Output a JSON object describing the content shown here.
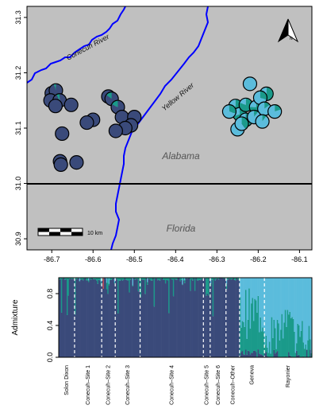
{
  "map": {
    "x_axis": {
      "min": -86.76,
      "max": -86.07,
      "ticks": [
        -86.7,
        -86.6,
        -86.5,
        -86.4,
        -86.3,
        -86.2,
        -86.1
      ],
      "tick_labels": [
        "-86.7",
        "-86.6",
        "-86.5",
        "-86.4",
        "-86.3",
        "-86.2",
        "-86.1"
      ]
    },
    "y_axis": {
      "min": 30.88,
      "max": 31.32,
      "ticks": [
        30.9,
        31.0,
        31.1,
        31.2,
        31.3
      ],
      "tick_labels": [
        "30.9",
        "31.0",
        "31.1",
        "31.2",
        "31.3"
      ]
    },
    "state_boundary_lat": 31.0,
    "labels": {
      "north": "N",
      "conecuh_river": "Conecuh River",
      "yellow_river": "Yellow River",
      "alabama": "Alabama",
      "florida": "Florida",
      "scale_bar": "10 km"
    },
    "colors": {
      "background": "#c0c0c0",
      "river": "#0000ff",
      "cluster_navy": "#3a4a7a",
      "cluster_teal": "#1a9a8a",
      "cluster_light_blue": "#5bbcdc",
      "cluster_red": "#e05050"
    },
    "points": [
      {
        "lon": -86.7,
        "lat": 31.163,
        "q": [
          1.0,
          0.0,
          0.0
        ]
      },
      {
        "lon": -86.69,
        "lat": 31.168,
        "q": [
          0.95,
          0.05,
          0.0
        ]
      },
      {
        "lon": -86.703,
        "lat": 31.15,
        "q": [
          1.0,
          0.0,
          0.0
        ]
      },
      {
        "lon": -86.681,
        "lat": 31.15,
        "q": [
          0.92,
          0.08,
          0.0
        ]
      },
      {
        "lon": -86.691,
        "lat": 31.14,
        "q": [
          1.0,
          0.0,
          0.0
        ]
      },
      {
        "lon": -86.653,
        "lat": 31.142,
        "q": [
          1.0,
          0.0,
          0.0
        ]
      },
      {
        "lon": -86.6,
        "lat": 31.115,
        "q": [
          1.0,
          0.0,
          0.0
        ]
      },
      {
        "lon": -86.615,
        "lat": 31.11,
        "q": [
          1.0,
          0.0,
          0.0
        ]
      },
      {
        "lon": -86.675,
        "lat": 31.09,
        "q": [
          1.0,
          0.0,
          0.0
        ]
      },
      {
        "lon": -86.68,
        "lat": 31.04,
        "q": [
          1.0,
          0.0,
          0.0
        ]
      },
      {
        "lon": -86.678,
        "lat": 31.034,
        "q": [
          1.0,
          0.0,
          0.0
        ]
      },
      {
        "lon": -86.64,
        "lat": 31.038,
        "q": [
          1.0,
          0.0,
          0.0
        ]
      },
      {
        "lon": -86.563,
        "lat": 31.157,
        "q": [
          1.0,
          0.0,
          0.0
        ]
      },
      {
        "lon": -86.555,
        "lat": 31.153,
        "q": [
          0.85,
          0.15,
          0.0
        ]
      },
      {
        "lon": -86.54,
        "lat": 31.138,
        "q": [
          0.82,
          0.18,
          0.0
        ]
      },
      {
        "lon": -86.53,
        "lat": 31.12,
        "q": [
          1.0,
          0.0,
          0.0
        ]
      },
      {
        "lon": -86.5,
        "lat": 31.12,
        "q": [
          1.0,
          0.0,
          0.0
        ]
      },
      {
        "lon": -86.508,
        "lat": 31.105,
        "q": [
          1.0,
          0.0,
          0.0
        ]
      },
      {
        "lon": -86.522,
        "lat": 31.1,
        "q": [
          1.0,
          0.0,
          0.0
        ]
      },
      {
        "lon": -86.545,
        "lat": 31.095,
        "q": [
          1.0,
          0.0,
          0.0
        ]
      },
      {
        "lon": -86.22,
        "lat": 31.18,
        "q": [
          0.0,
          0.0,
          1.0
        ]
      },
      {
        "lon": -86.255,
        "lat": 31.14,
        "q": [
          0.0,
          0.6,
          0.4
        ]
      },
      {
        "lon": -86.245,
        "lat": 31.125,
        "q": [
          0.0,
          0.7,
          0.3
        ]
      },
      {
        "lon": -86.23,
        "lat": 31.142,
        "q": [
          0.0,
          0.8,
          0.2
        ]
      },
      {
        "lon": -86.205,
        "lat": 31.138,
        "q": [
          0.0,
          0.75,
          0.25
        ]
      },
      {
        "lon": -86.18,
        "lat": 31.162,
        "q": [
          0.0,
          0.85,
          0.15
        ]
      },
      {
        "lon": -86.195,
        "lat": 31.155,
        "q": [
          0.0,
          0.3,
          0.7
        ]
      },
      {
        "lon": -86.185,
        "lat": 31.135,
        "q": [
          0.0,
          0.15,
          0.85
        ]
      },
      {
        "lon": -86.16,
        "lat": 31.13,
        "q": [
          0.0,
          0.2,
          0.8
        ]
      },
      {
        "lon": -86.23,
        "lat": 31.115,
        "q": [
          0.0,
          0.5,
          0.5
        ]
      },
      {
        "lon": -86.21,
        "lat": 31.12,
        "q": [
          0.0,
          0.1,
          0.9
        ]
      },
      {
        "lon": -86.25,
        "lat": 31.098,
        "q": [
          0.0,
          0.25,
          0.75
        ]
      },
      {
        "lon": -86.24,
        "lat": 31.108,
        "q": [
          0.0,
          0.4,
          0.6
        ]
      },
      {
        "lon": -86.19,
        "lat": 31.112,
        "q": [
          0.0,
          0.1,
          0.9
        ]
      },
      {
        "lon": -86.27,
        "lat": 31.13,
        "q": [
          0.0,
          0.3,
          0.7
        ]
      }
    ]
  },
  "admixture": {
    "ylabel": "Admixture",
    "y_ticks": [
      0.0,
      0.4,
      0.8
    ],
    "y_tick_labels": [
      "0.0",
      "0.4",
      "0.8"
    ],
    "groups": [
      {
        "label": "Solon Dixon",
        "n": 14,
        "base": "navy"
      },
      {
        "label": "Conecuh–Site 1",
        "n": 24,
        "base": "navy"
      },
      {
        "label": "Conecuh–Site 2",
        "n": 12,
        "base": "navy"
      },
      {
        "label": "Conecuh–Site 3",
        "n": 22,
        "base": "navy"
      },
      {
        "label": "Conecuh–Site 4",
        "n": 56,
        "base": "navy"
      },
      {
        "label": "Conecuh–Site 5",
        "n": 6,
        "base": "navy"
      },
      {
        "label": "Conecuh–Site 6",
        "n": 14,
        "base": "navy"
      },
      {
        "label": "Conecuh–Other",
        "n": 12,
        "base": "navy"
      },
      {
        "label": "Geneva",
        "n": 22,
        "base": "mixed"
      },
      {
        "label": "Rayonier",
        "n": 42,
        "base": "light_blue"
      }
    ]
  }
}
